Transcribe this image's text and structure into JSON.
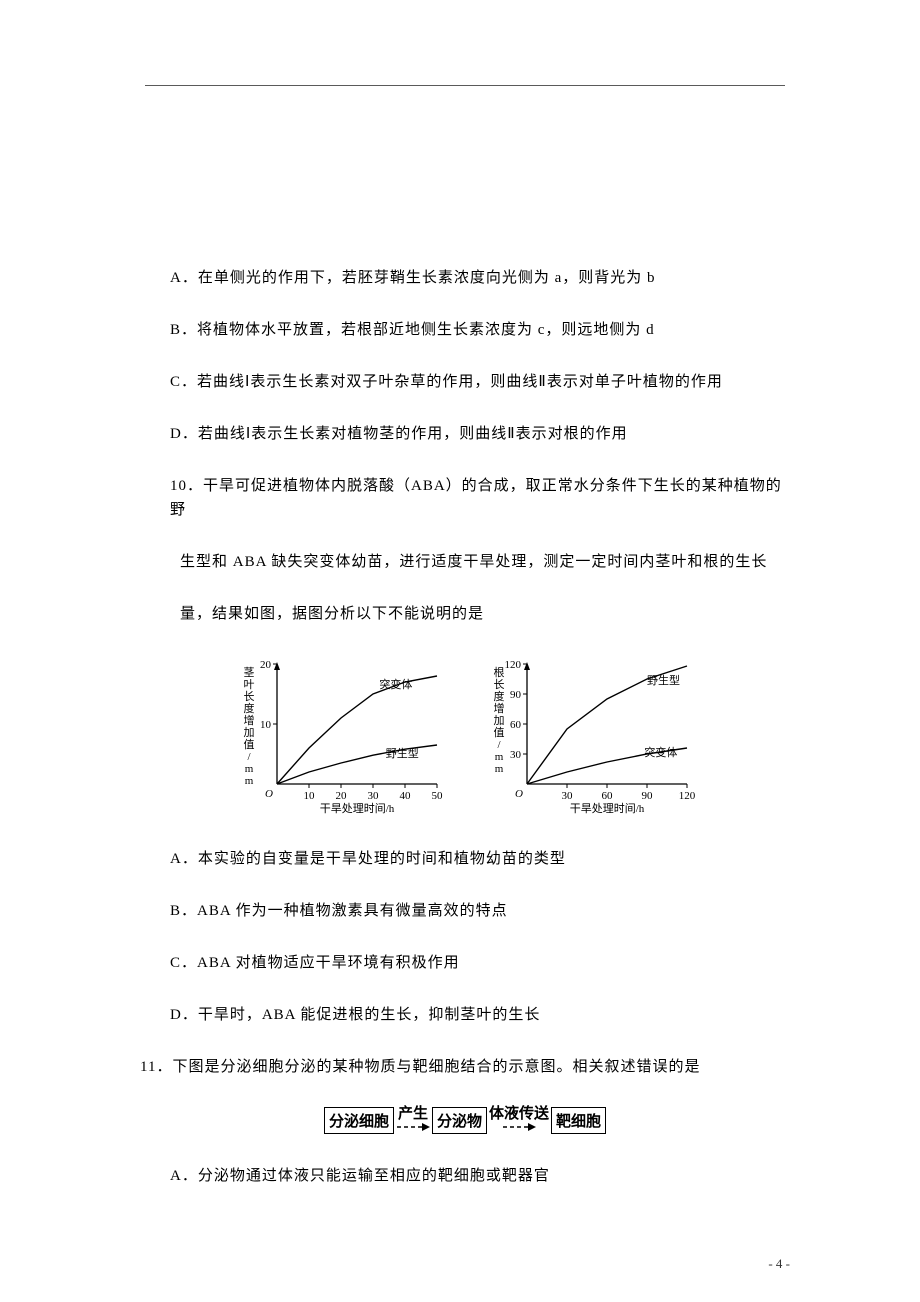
{
  "options_top": {
    "A": "A．在单侧光的作用下，若胚芽鞘生长素浓度向光侧为 a，则背光为 b",
    "B": "B．将植物体水平放置，若根部近地侧生长素浓度为 c，则远地侧为 d",
    "C": "C．若曲线Ⅰ表示生长素对双子叶杂草的作用，则曲线Ⅱ表示对单子叶植物的作用",
    "D": "D．若曲线Ⅰ表示生长素对植物茎的作用，则曲线Ⅱ表示对根的作用"
  },
  "q10": {
    "num": "10．",
    "stem_l1": "干旱可促进植物体内脱落酸（ABA）的合成，取正常水分条件下生长的某种植物的野",
    "stem_l2": "生型和 ABA 缺失突变体幼苗，进行适度干旱处理，测定一定时间内茎叶和根的生长",
    "stem_l3": "量，结果如图，据图分析以下不能说明的是",
    "options": {
      "A": "A．本实验的自变量是干旱处理的时间和植物幼苗的类型",
      "B": "B．ABA 作为一种植物激素具有微量高效的特点",
      "C": "C．ABA 对植物适应干旱环境有积极作用",
      "D": "D．干旱时，ABA 能促进根的生长，抑制茎叶的生长"
    }
  },
  "chart_left": {
    "ylabel": "茎叶长度增加值/mm",
    "xlabel": "干旱处理时间/h",
    "ymax": 20,
    "ystep": 10,
    "xmax": 50,
    "xstep": 10,
    "line_mutant": {
      "label": "突变体",
      "points": [
        [
          0,
          0
        ],
        [
          10,
          6
        ],
        [
          20,
          11
        ],
        [
          30,
          15
        ],
        [
          40,
          17
        ],
        [
          50,
          18
        ]
      ]
    },
    "line_wild": {
      "label": "野生型",
      "points": [
        [
          0,
          0
        ],
        [
          10,
          2
        ],
        [
          20,
          3.5
        ],
        [
          30,
          4.8
        ],
        [
          40,
          5.8
        ],
        [
          50,
          6.5
        ]
      ]
    },
    "axis_color": "#000000",
    "line_color": "#000000",
    "font_size": 11
  },
  "chart_right": {
    "ylabel": "根长度增加值/mm",
    "xlabel": "干旱处理时间/h",
    "ymax": 120,
    "ystep": 30,
    "xmax": 120,
    "xstep": 30,
    "line_wild": {
      "label": "野生型",
      "points": [
        [
          0,
          0
        ],
        [
          30,
          55
        ],
        [
          60,
          85
        ],
        [
          90,
          105
        ],
        [
          120,
          118
        ]
      ]
    },
    "line_mutant": {
      "label": "突变体",
      "points": [
        [
          0,
          0
        ],
        [
          30,
          12
        ],
        [
          60,
          22
        ],
        [
          90,
          30
        ],
        [
          120,
          36
        ]
      ]
    },
    "axis_color": "#000000",
    "line_color": "#000000",
    "font_size": 11
  },
  "q11": {
    "num": "11．",
    "stem": "下图是分泌细胞分泌的某种物质与靶细胞结合的示意图。相关叙述错误的是",
    "option_A": "A．分泌物通过体液只能运输至相应的靶细胞或靶器官"
  },
  "diagram": {
    "box1": "分泌细胞",
    "arrow1_label": "产生",
    "box2": "分泌物",
    "arrow2_label": "体液传送",
    "box3": "靶细胞"
  },
  "page_number": "- 4 -"
}
